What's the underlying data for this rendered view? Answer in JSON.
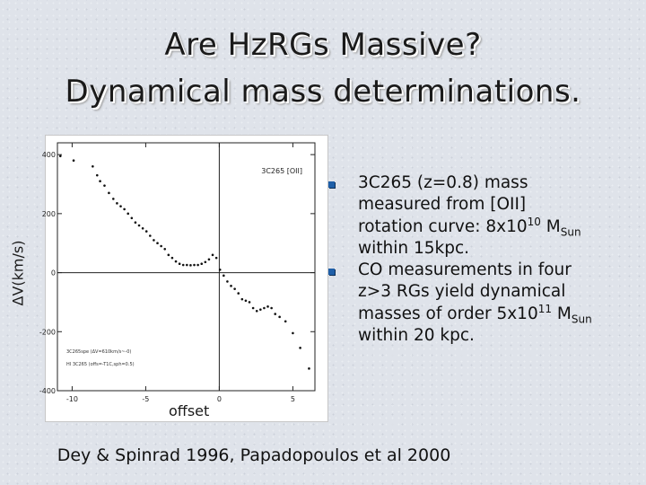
{
  "header": {
    "title_line1": "Are HzRGs Massive?",
    "title_line2": "Dynamical mass determinations."
  },
  "figure": {
    "y_axis_label": "ΔV(km/s)",
    "x_axis_label": "offset"
  },
  "chart_data": {
    "type": "scatter",
    "title": "",
    "plot_label": "3C265 [OII]",
    "xlabel": "offset",
    "ylabel": "ΔV(km/s)",
    "xlim": [
      -11,
      6.5
    ],
    "ylim": [
      -400,
      440
    ],
    "x_ticks": [
      -10,
      -5,
      0,
      5
    ],
    "y_ticks": [
      -400,
      -200,
      0,
      200,
      400
    ],
    "grid": false,
    "reference_lines": {
      "x": 0,
      "y": 0
    },
    "legend_lines": [
      "3C265spe (ΔV=610km/s~-0)",
      "HI 3C265 (offs=-T1C,sph=0.5)"
    ],
    "series": [
      {
        "x": [
          -10.8,
          -9.9,
          -8.6,
          -8.3,
          -8.1,
          -7.8,
          -7.5,
          -7.2,
          -6.95,
          -6.7,
          -6.45,
          -6.2,
          -5.95,
          -5.7,
          -5.45,
          -5.2,
          -4.95,
          -4.7,
          -4.45,
          -4.2,
          -3.95,
          -3.7,
          -3.45,
          -3.2,
          -2.95,
          -2.7,
          -2.45,
          -2.2,
          -1.95,
          -1.7,
          -1.45,
          -1.2,
          -0.95,
          -0.7,
          -0.45,
          -0.2,
          0.05,
          0.3,
          0.55,
          0.8,
          1.05,
          1.3,
          1.55,
          1.8,
          2.05,
          2.3,
          2.55,
          2.8,
          3.05,
          3.3,
          3.55,
          3.8,
          4.1,
          4.5,
          5.0,
          5.5,
          6.1
        ],
        "y": [
          395,
          380,
          360,
          330,
          310,
          295,
          270,
          250,
          235,
          225,
          215,
          200,
          185,
          170,
          160,
          150,
          140,
          125,
          110,
          100,
          90,
          80,
          60,
          50,
          38,
          30,
          26,
          26,
          25,
          26,
          26,
          30,
          36,
          45,
          60,
          50,
          10,
          -10,
          -30,
          -45,
          -55,
          -70,
          -90,
          -95,
          -100,
          -120,
          -130,
          -125,
          -120,
          -115,
          -120,
          -140,
          -150,
          -165,
          -205,
          -255,
          -325
        ]
      }
    ]
  },
  "bullets": [
    {
      "line1": "3C265 (z=0.8) mass",
      "line2": "measured from [OII]",
      "line3_pre": "rotation curve: 8x10",
      "line3_sup": "10",
      "line3_mid": " M",
      "line3_sub": "Sun",
      "line4": "within 15kpc."
    },
    {
      "line1": "CO measurements in four",
      "line2": "z>3 RGs yield dynamical",
      "line3_pre": "masses of order 5x10",
      "line3_sup": "11",
      "line3_mid": " M",
      "line3_sub": "Sun",
      "line4": "within 20 kpc."
    }
  ],
  "citation": "Dey & Spinrad 1996, Papadopoulos et al 2000",
  "colors": {
    "bullet": "#1f5fa8",
    "background": "#dfe3ea"
  }
}
